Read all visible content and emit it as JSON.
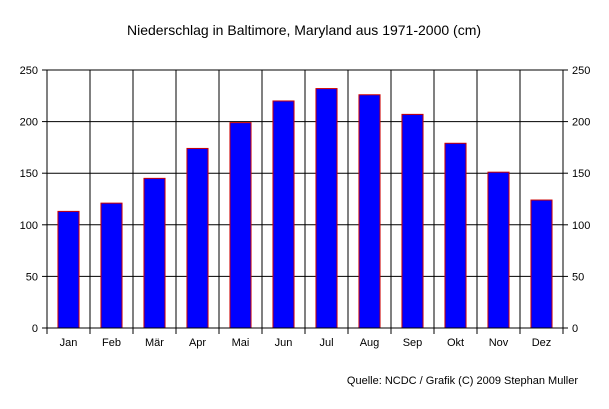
{
  "chart_data": {
    "type": "bar",
    "title": "Niederschlag in Baltimore, Maryland aus 1971-2000 (cm)",
    "categories": [
      "Jan",
      "Feb",
      "Mär",
      "Apr",
      "Mai",
      "Jun",
      "Jul",
      "Aug",
      "Sep",
      "Okt",
      "Nov",
      "Dez"
    ],
    "values": [
      113,
      121,
      145,
      174,
      199,
      220,
      232,
      226,
      207,
      179,
      151,
      124
    ],
    "ylim": [
      0,
      250
    ],
    "yticks": [
      0,
      50,
      100,
      150,
      200,
      250
    ],
    "xlabel": "",
    "ylabel": "",
    "grid": true,
    "legend": "none",
    "source": "Quelle: NCDC / Grafik (C) 2009 Stephan Muller",
    "colors": {
      "bar_fill": "#0000ff",
      "bar_stroke": "#cc0000",
      "grid": "#000000"
    }
  }
}
